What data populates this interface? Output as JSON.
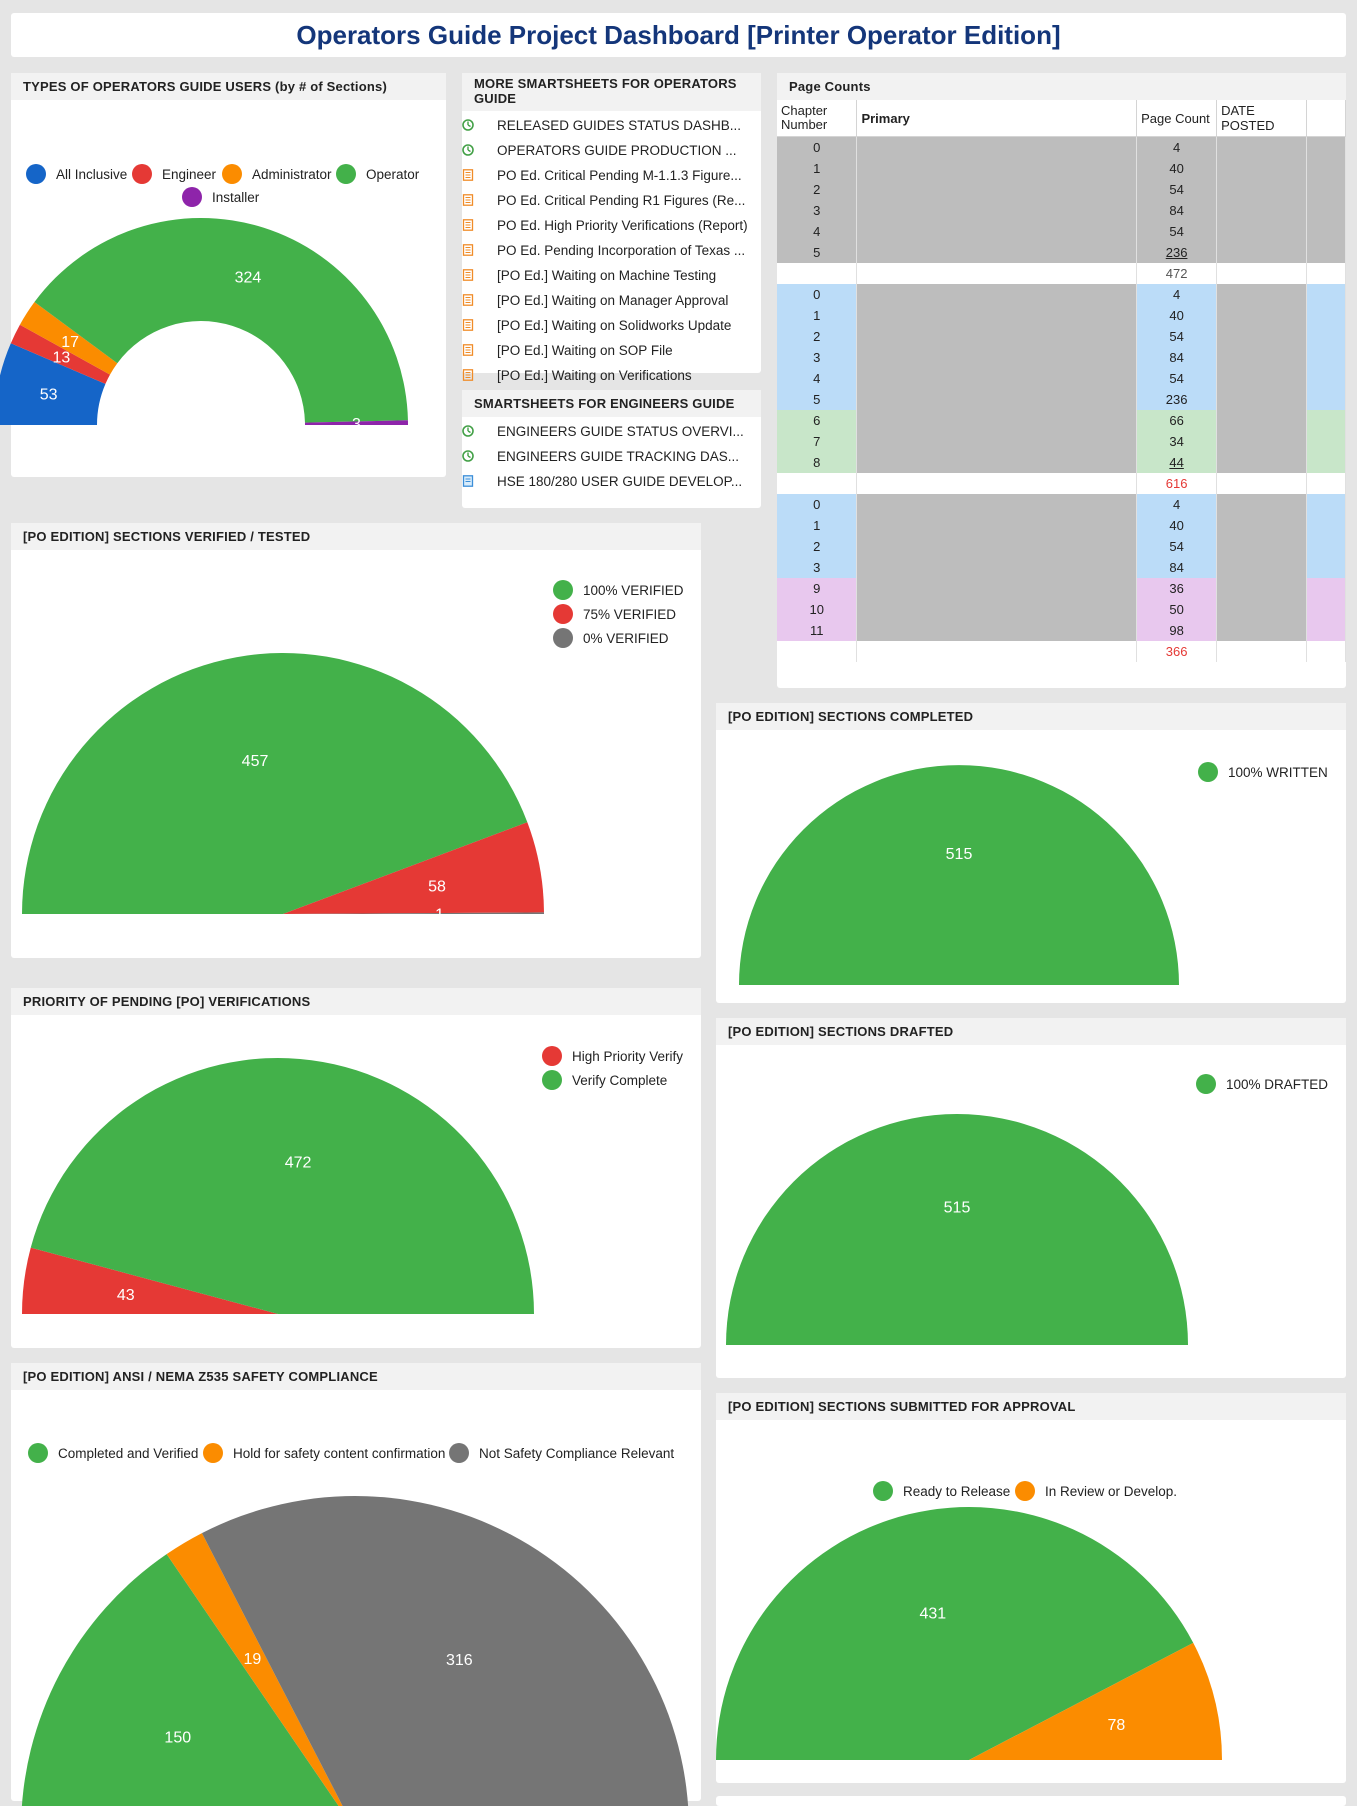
{
  "dashboard_title": "Operators Guide Project Dashboard [Printer Operator Edition]",
  "user_types": {
    "header": "TYPES OF OPERATORS GUIDE USERS (by # of Sections)",
    "chart_data": {
      "type": "pie",
      "shape": "semicircle-donut",
      "categories": [
        "All Inclusive",
        "Engineer",
        "Administrator",
        "Operator",
        "Installer"
      ],
      "values": [
        53,
        13,
        17,
        324,
        3
      ],
      "colors": [
        "#1565c8",
        "#e53935",
        "#fb8c00",
        "#43b14a",
        "#8e24aa"
      ]
    }
  },
  "more_smartsheets": {
    "header": "MORE SMARTSHEETS FOR OPERATORS GUIDE",
    "items": [
      {
        "label": "RELEASED GUIDES STATUS DASHB...",
        "icon": "dashboard-icon"
      },
      {
        "label": "OPERATORS GUIDE PRODUCTION ...",
        "icon": "dashboard-icon"
      },
      {
        "label": "PO Ed. Critical Pending M-1.1.3 Figure...",
        "icon": "report-icon"
      },
      {
        "label": "PO Ed. Critical Pending R1 Figures (Re...",
        "icon": "report-icon"
      },
      {
        "label": "PO Ed. High Priority Verifications (Report)",
        "icon": "report-icon"
      },
      {
        "label": "PO Ed. Pending Incorporation of Texas ...",
        "icon": "report-icon"
      },
      {
        "label": "[PO Ed.] Waiting on Machine Testing",
        "icon": "report-icon"
      },
      {
        "label": "[PO Ed.] Waiting on Manager Approval",
        "icon": "report-icon"
      },
      {
        "label": "[PO Ed.] Waiting on Solidworks Update",
        "icon": "report-icon"
      },
      {
        "label": "[PO Ed.] Waiting on SOP File",
        "icon": "report-icon"
      },
      {
        "label": "[PO Ed.] Waiting on Verifications",
        "icon": "report-icon"
      }
    ]
  },
  "engineers_smartsheets": {
    "header": "SMARTSHEETS FOR ENGINEERS GUIDE",
    "items": [
      {
        "label": "ENGINEERS GUIDE STATUS OVERVI...",
        "icon": "dashboard-icon"
      },
      {
        "label": "ENGINEERS GUIDE TRACKING DAS...",
        "icon": "dashboard-icon"
      },
      {
        "label": "HSE 180/280 USER GUIDE DEVELOP...",
        "icon": "sheet-icon"
      }
    ]
  },
  "page_counts": {
    "header": "Page Counts",
    "columns": [
      "Chapter Number",
      "Primary",
      "Page Count",
      "DATE POSTED"
    ],
    "rows": [
      {
        "ch": "0",
        "count": "4",
        "color": "#bdbdbd",
        "underline": false
      },
      {
        "ch": "1",
        "count": "40",
        "color": "#bdbdbd",
        "underline": false
      },
      {
        "ch": "2",
        "count": "54",
        "color": "#bdbdbd",
        "underline": false
      },
      {
        "ch": "3",
        "count": "84",
        "color": "#bdbdbd",
        "underline": false
      },
      {
        "ch": "4",
        "count": "54",
        "color": "#bdbdbd",
        "underline": false
      },
      {
        "ch": "5",
        "count": "236",
        "color": "#bdbdbd",
        "underline": true
      },
      {
        "ch": "",
        "count": "472",
        "color": "#ffffff",
        "total": true,
        "total_color": "#555555"
      },
      {
        "ch": "0",
        "count": "4",
        "color": "#bbdcf8",
        "underline": false
      },
      {
        "ch": "1",
        "count": "40",
        "color": "#bbdcf8",
        "underline": false
      },
      {
        "ch": "2",
        "count": "54",
        "color": "#bbdcf8",
        "underline": false
      },
      {
        "ch": "3",
        "count": "84",
        "color": "#bbdcf8",
        "underline": false
      },
      {
        "ch": "4",
        "count": "54",
        "color": "#bbdcf8",
        "underline": false
      },
      {
        "ch": "5",
        "count": "236",
        "color": "#bbdcf8",
        "underline": false
      },
      {
        "ch": "6",
        "count": "66",
        "color": "#c8e6c9",
        "underline": false
      },
      {
        "ch": "7",
        "count": "34",
        "color": "#c8e6c9",
        "underline": false
      },
      {
        "ch": "8",
        "count": "44",
        "color": "#c8e6c9",
        "underline": true
      },
      {
        "ch": "",
        "count": "616",
        "color": "#ffffff",
        "total": true,
        "total_color": "#e53935"
      },
      {
        "ch": "0",
        "count": "4",
        "color": "#bbdcf8",
        "underline": false
      },
      {
        "ch": "1",
        "count": "40",
        "color": "#bbdcf8",
        "underline": false
      },
      {
        "ch": "2",
        "count": "54",
        "color": "#bbdcf8",
        "underline": false
      },
      {
        "ch": "3",
        "count": "84",
        "color": "#bbdcf8",
        "underline": false
      },
      {
        "ch": "9",
        "count": "36",
        "color": "#e8c8ee",
        "underline": false
      },
      {
        "ch": "10",
        "count": "50",
        "color": "#e8c8ee",
        "underline": false
      },
      {
        "ch": "11",
        "count": "98",
        "color": "#e8c8ee",
        "underline": false
      },
      {
        "ch": "",
        "count": "366",
        "color": "#ffffff",
        "total": true,
        "total_color": "#e53935"
      }
    ]
  },
  "verified": {
    "header": "[PO EDITION] SECTIONS VERIFIED / TESTED",
    "chart_data": {
      "type": "pie",
      "shape": "semicircle",
      "categories": [
        "100% VERIFIED",
        "75% VERIFIED",
        "0% VERIFIED"
      ],
      "values": [
        457,
        58,
        1
      ],
      "colors": [
        "#43b14a",
        "#e53935",
        "#757575"
      ]
    }
  },
  "completed": {
    "header": "[PO EDITION] SECTIONS COMPLETED",
    "chart_data": {
      "type": "pie",
      "shape": "semicircle",
      "categories": [
        "100% WRITTEN"
      ],
      "values": [
        515
      ],
      "colors": [
        "#43b14a"
      ]
    }
  },
  "priority": {
    "header": "PRIORITY OF PENDING [PO] VERIFICATIONS",
    "chart_data": {
      "type": "pie",
      "shape": "semicircle",
      "categories": [
        "High Priority Verify",
        "Verify Complete"
      ],
      "values": [
        43,
        472
      ],
      "colors": [
        "#e53935",
        "#43b14a"
      ]
    }
  },
  "drafted": {
    "header": "[PO EDITION] SECTIONS DRAFTED",
    "chart_data": {
      "type": "pie",
      "shape": "semicircle",
      "categories": [
        "100% DRAFTED"
      ],
      "values": [
        515
      ],
      "colors": [
        "#43b14a"
      ]
    }
  },
  "safety": {
    "header": "[PO EDITION] ANSI / NEMA Z535 SAFETY COMPLIANCE",
    "chart_data": {
      "type": "pie",
      "shape": "semicircle",
      "categories": [
        "Completed and Verified",
        "Hold for safety content confirmation",
        "Not Safety Compliance Relevant"
      ],
      "values": [
        150,
        19,
        316
      ],
      "colors": [
        "#43b14a",
        "#fb8c00",
        "#757575"
      ]
    }
  },
  "submitted": {
    "header": "[PO EDITION] SECTIONS SUBMITTED FOR APPROVAL",
    "chart_data": {
      "type": "pie",
      "shape": "semicircle",
      "categories": [
        "Ready to Release",
        "In Review or Develop."
      ],
      "values": [
        431,
        78
      ],
      "colors": [
        "#43b14a",
        "#fb8c00"
      ]
    }
  }
}
